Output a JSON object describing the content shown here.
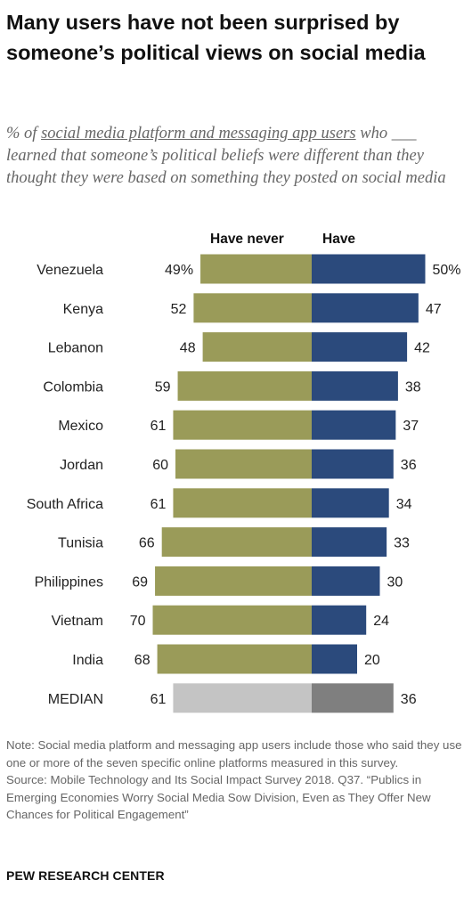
{
  "title": "Many users have not been surprised by someone’s political views on social media",
  "subtitle": {
    "prefix": "% of ",
    "underlined": "social media platform and messaging app users",
    "rest": " who ___ learned that someone’s political beliefs were different than they thought they were based on something they posted on social media"
  },
  "colors": {
    "have_never": "#9a9b59",
    "have": "#2b4a7c",
    "median_have_never": "#c4c4c4",
    "median_have": "#7f7f7f"
  },
  "chart_data": {
    "type": "bar",
    "orientation": "horizontal-diverging",
    "categories": [
      "Venezuela",
      "Kenya",
      "Lebanon",
      "Colombia",
      "Mexico",
      "Jordan",
      "South Africa",
      "Tunisia",
      "Philippines",
      "Vietnam",
      "India",
      "MEDIAN"
    ],
    "series": [
      {
        "name": "Have never",
        "values": [
          49,
          52,
          48,
          59,
          61,
          60,
          61,
          66,
          69,
          70,
          68,
          61
        ]
      },
      {
        "name": "Have",
        "values": [
          50,
          47,
          42,
          38,
          37,
          36,
          34,
          33,
          30,
          24,
          20,
          36
        ]
      }
    ],
    "value_labels": {
      "Have never": [
        "49%",
        "52",
        "48",
        "59",
        "61",
        "60",
        "61",
        "66",
        "69",
        "70",
        "68",
        "61"
      ],
      "Have": [
        "50%",
        "47",
        "42",
        "38",
        "37",
        "36",
        "34",
        "33",
        "30",
        "24",
        "20",
        "36"
      ]
    }
  },
  "footer": {
    "note": "Note: Social media platform and messaging app users include those who said they use one or more of the seven specific online platforms measured in this survey.",
    "source": "Source: Mobile Technology and Its Social Impact Survey 2018. Q37. “Publics in Emerging Economies Worry Social Media Sow Division, Even as They Offer New Chances for Political Engagement”"
  },
  "brand": "PEW RESEARCH CENTER"
}
